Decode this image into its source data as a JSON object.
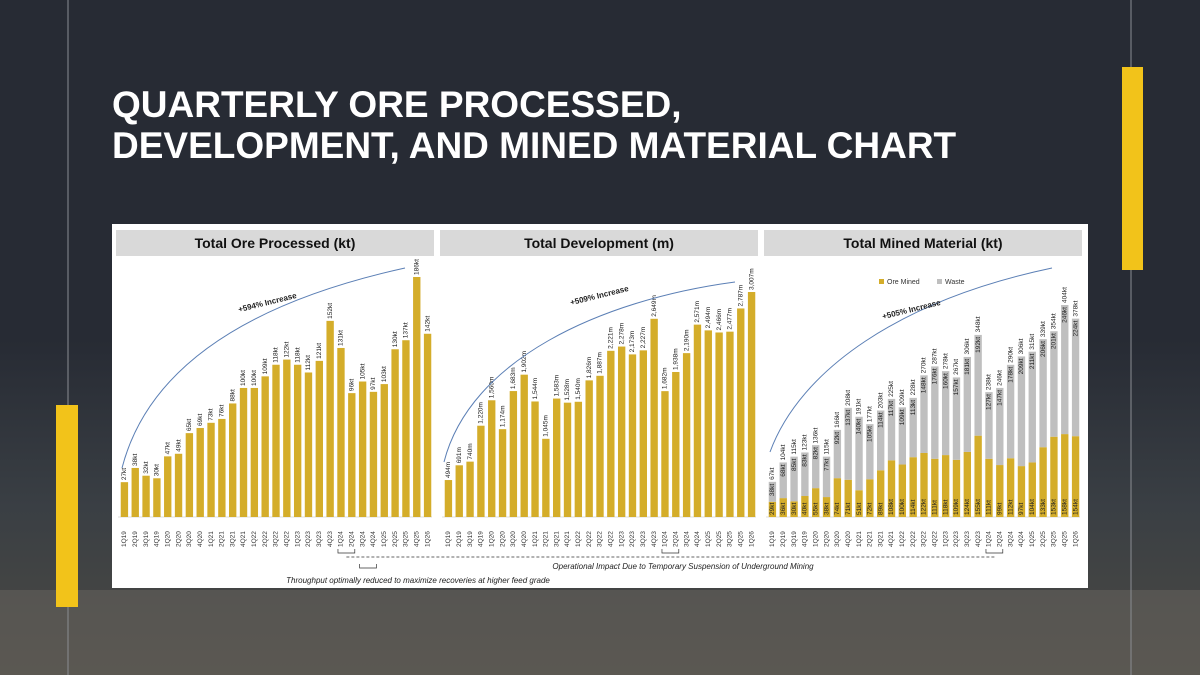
{
  "title": [
    "QUARTERLY ORE PROCESSED,",
    "DEVELOPMENT, AND MINED MATERIAL CHART"
  ],
  "notes": [
    "Operational Impact Due to Temporary Suspension of Underground Mining",
    "Throughput optimally reduced to maximize recoveries at higher feed grade"
  ],
  "chart_data": [
    {
      "type": "bar",
      "title": "Total Ore Processed (kt)",
      "annotation": "+594% Increase",
      "color": "#d4ad2a",
      "categories": [
        "1Q19",
        "2Q19",
        "3Q19",
        "4Q19",
        "1Q20",
        "2Q20",
        "3Q20",
        "4Q20",
        "1Q21",
        "2Q21",
        "3Q21",
        "4Q21",
        "1Q22",
        "2Q22",
        "3Q22",
        "4Q22",
        "1Q23",
        "2Q23",
        "3Q23",
        "4Q23",
        "1Q24",
        "2Q24",
        "3Q24",
        "4Q24",
        "1Q25",
        "2Q25",
        "3Q25",
        "4Q25",
        "1Q26"
      ],
      "values": [
        27,
        38,
        32,
        30,
        47,
        49,
        65,
        69,
        73,
        76,
        88,
        100,
        100,
        109,
        118,
        122,
        118,
        112,
        121,
        152,
        131,
        96,
        105,
        97,
        103,
        130,
        137,
        186,
        142
      ],
      "value_labels": [
        "27kt",
        "38kt",
        "32kt",
        "30kt",
        "47kt",
        "49kt",
        "65kt",
        "69kt",
        "73kt",
        "76kt",
        "88kt",
        "100kt",
        "100kt",
        "109kt",
        "118kt",
        "122kt",
        "118kt",
        "112kt",
        "121kt",
        "152kt",
        "131kt",
        "96kt",
        "105kt",
        "97kt",
        "103kt",
        "130kt",
        "137kt",
        "186kt",
        "142kt"
      ]
    },
    {
      "type": "bar",
      "title": "Total Development (m)",
      "annotation": "+509% Increase",
      "color": "#d4ad2a",
      "categories": [
        "1Q19",
        "2Q19",
        "3Q19",
        "4Q19",
        "1Q20",
        "2Q20",
        "3Q20",
        "4Q20",
        "1Q21",
        "2Q21",
        "3Q21",
        "4Q21",
        "1Q22",
        "2Q22",
        "3Q22",
        "4Q22",
        "1Q23",
        "2Q23",
        "3Q23",
        "4Q23",
        "1Q24",
        "2Q24",
        "3Q24",
        "4Q24",
        "1Q25",
        "2Q25",
        "3Q25",
        "4Q25",
        "1Q26"
      ],
      "values": [
        494,
        691,
        740,
        1220,
        1560,
        1174,
        1683,
        1902,
        1544,
        1045,
        1583,
        1528,
        1540,
        1826,
        1887,
        2221,
        2278,
        2173,
        2227,
        2649,
        1682,
        1938,
        2190,
        2571,
        2494,
        2466,
        2477,
        2787,
        3007
      ],
      "value_labels": [
        "494m",
        "691m",
        "740m",
        "1,220m",
        "1,560m",
        "1,174m",
        "1,683m",
        "1,902m",
        "1,544m",
        "1,045m",
        "1,583m",
        "1,528m",
        "1,540m",
        "1,826m",
        "1,887m",
        "2,221m",
        "2,278m",
        "2,173m",
        "2,227m",
        "2,649m",
        "1,682m",
        "1,938m",
        "2,190m",
        "2,571m",
        "2,494m",
        "2,466m",
        "2,477m",
        "2,787m",
        "3,007m"
      ]
    },
    {
      "type": "stacked_bar",
      "title": "Total Mined Material (kt)",
      "annotation": "+505% Increase",
      "categories": [
        "1Q19",
        "2Q19",
        "3Q19",
        "4Q19",
        "1Q20",
        "2Q20",
        "3Q20",
        "4Q20",
        "1Q21",
        "2Q21",
        "3Q21",
        "4Q21",
        "1Q22",
        "2Q22",
        "3Q22",
        "4Q22",
        "1Q23",
        "2Q23",
        "3Q23",
        "4Q23",
        "1Q24",
        "2Q24",
        "3Q24",
        "4Q24",
        "1Q25",
        "2Q25",
        "3Q25",
        "4Q25",
        "1Q26"
      ],
      "series": [
        {
          "name": "Ore Mined",
          "color": "#d4ad2a",
          "values": [
            29,
            36,
            30,
            40,
            55,
            38,
            74,
            71,
            51,
            72,
            89,
            108,
            100,
            114,
            122,
            111,
            118,
            109,
            124,
            155,
            111,
            99,
            112,
            97,
            104,
            133,
            153,
            158,
            154
          ],
          "value_labels": [
            "29kt",
            "36kt",
            "30kt",
            "40kt",
            "55kt",
            "38kt",
            "74kt",
            "71kt",
            "51kt",
            "72kt",
            "89kt",
            "108kt",
            "100kt",
            "114kt",
            "122kt",
            "111kt",
            "118kt",
            "109kt",
            "124kt",
            "155kt",
            "111kt",
            "99kt",
            "112kt",
            "97kt",
            "104kt",
            "133kt",
            "153kt",
            "158kt",
            "154kt"
          ]
        },
        {
          "name": "Waste",
          "color": "#bfbfbf",
          "values": [
            38,
            68,
            85,
            83,
            82,
            77,
            92,
            137,
            140,
            105,
            114,
            117,
            109,
            113,
            148,
            176,
            160,
            157,
            181,
            192,
            127,
            147,
            178,
            209,
            211,
            206,
            201,
            246,
            224
          ],
          "value_labels": [
            "38kt",
            "68kt",
            "85kt",
            "83kt",
            "82kt",
            "77kt",
            "92kt",
            "137kt",
            "140kt",
            "105kt",
            "114kt",
            "117kt",
            "109kt",
            "113kt",
            "148kt",
            "176kt",
            "160kt",
            "157kt",
            "181kt",
            "192kt",
            "127kt",
            "147kt",
            "178kt",
            "209kt",
            "211kt",
            "206kt",
            "201kt",
            "246kt",
            "224kt"
          ]
        }
      ],
      "totals": [
        67,
        104,
        115,
        123,
        136,
        115,
        166,
        208,
        191,
        177,
        203,
        225,
        209,
        228,
        270,
        287,
        278,
        267,
        306,
        348,
        238,
        246,
        290,
        306,
        315,
        339,
        354,
        404,
        378
      ],
      "total_labels": [
        "67kt",
        "104kt",
        "115kt",
        "123kt",
        "136kt",
        "115kt",
        "166kt",
        "208kt",
        "191kt",
        "177kt",
        "203kt",
        "225kt",
        "209kt",
        "228kt",
        "270kt",
        "287kt",
        "278kt",
        "267kt",
        "306kt",
        "348kt",
        "238kt",
        "246kt",
        "290kt",
        "306kt",
        "315kt",
        "339kt",
        "354kt",
        "404kt",
        "378kt"
      ],
      "legend": "top-left"
    }
  ]
}
